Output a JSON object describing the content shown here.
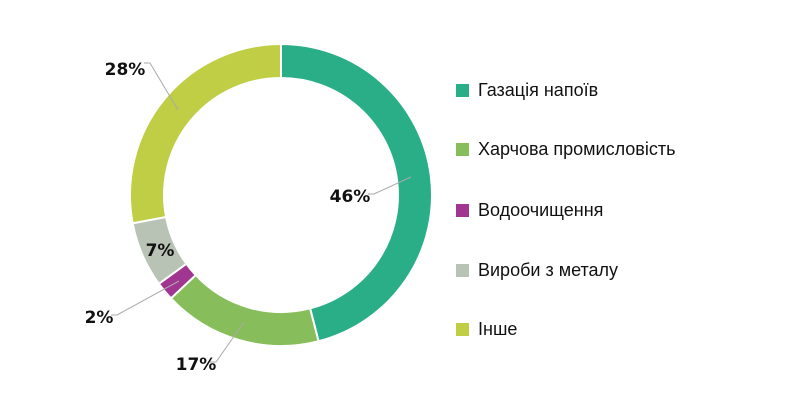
{
  "chart_data": {
    "type": "pie",
    "subtype": "donut",
    "title": "",
    "categories": [
      "Газація напоїв",
      "Харчова промисловість",
      "Водоочищення",
      "Вироби з металу",
      "Інше"
    ],
    "values": [
      46,
      17,
      2,
      7,
      28
    ],
    "labels": [
      "46%",
      "17%",
      "2%",
      "7%",
      "28%"
    ],
    "colors": [
      "#2aae87",
      "#87be5b",
      "#a0368f",
      "#b8c2b5",
      "#bfce45"
    ],
    "legend_position": "right",
    "start_angle_deg": 0,
    "direction": "clockwise"
  },
  "legend": {
    "items": [
      {
        "label": "Газація напоїв",
        "color": "#2aae87"
      },
      {
        "label": "Харчова промисловість",
        "color": "#87be5b"
      },
      {
        "label": "Водоочищення",
        "color": "#a0368f"
      },
      {
        "label": "Вироби з металу",
        "color": "#b8c2b5"
      },
      {
        "label": "Інше",
        "color": "#bfce45"
      }
    ]
  }
}
